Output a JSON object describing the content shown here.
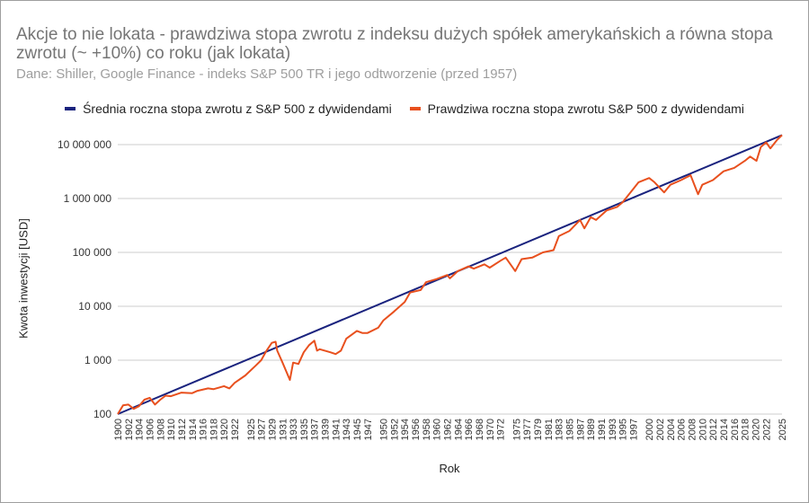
{
  "chart_data": {
    "type": "line",
    "title": "Akcje to nie lokata - prawdziwa stopa zwrotu z indeksu dużych spółek amerykańskich a równa stopa zwrotu (~ +10%) co roku (jak lokata)",
    "subtitle": "Dane: Shiller, Google Finance - indeks S&P 500 TR i jego odtworzenie (przed 1957)",
    "xlabel": "Rok",
    "ylabel": "Kwota inwestycji [USD]",
    "yscale": "log",
    "ylim": [
      100,
      15000000
    ],
    "yticks": [
      "100",
      "1 000",
      "10 000",
      "100 000",
      "1 000 000",
      "10 000 000"
    ],
    "ytick_values": [
      100,
      1000,
      10000,
      100000,
      1000000,
      10000000
    ],
    "xticks": [
      "1900",
      "1902",
      "1904",
      "1906",
      "1908",
      "1910",
      "1912",
      "1914",
      "1916",
      "1918",
      "1920",
      "1922",
      "1925",
      "1927",
      "1929",
      "1931",
      "1933",
      "1935",
      "1937",
      "1939",
      "1941",
      "1943",
      "1945",
      "1947",
      "1950",
      "1952",
      "1954",
      "1956",
      "1958",
      "1960",
      "1962",
      "1964",
      "1966",
      "1968",
      "1970",
      "1972",
      "1975",
      "1977",
      "1979",
      "1981",
      "1983",
      "1985",
      "1987",
      "1989",
      "1991",
      "1993",
      "1995",
      "1997",
      "2000",
      "2002",
      "2004",
      "2006",
      "2008",
      "2010",
      "2012",
      "2014",
      "2016",
      "2018",
      "2020",
      "2022",
      "2025"
    ],
    "grid": true,
    "legend_position": "top",
    "series": [
      {
        "name": "Średnia roczna stopa zwrotu z S&P 500 z dywidendami",
        "color": "#1a237e",
        "x": [
          1900,
          2025
        ],
        "values": [
          100,
          15000000
        ]
      },
      {
        "name": "Prawdziwa roczna stopa zwrotu S&P 500 z dywidendami",
        "color": "#e8501e",
        "x": [
          1900,
          1901,
          1902,
          1903,
          1904,
          1905,
          1906,
          1907,
          1908,
          1909,
          1910,
          1912,
          1914,
          1915,
          1917,
          1918,
          1920,
          1921,
          1922,
          1924,
          1926,
          1927,
          1928,
          1929,
          1929.7,
          1930,
          1931,
          1932.4,
          1933,
          1934,
          1935,
          1936,
          1937,
          1937.5,
          1938,
          1940,
          1941,
          1942,
          1943,
          1945,
          1946,
          1947,
          1949,
          1950,
          1952,
          1954,
          1955,
          1957,
          1958,
          1960,
          1962,
          1962.5,
          1964,
          1966,
          1967,
          1969,
          1970,
          1972,
          1973,
          1974.8,
          1976,
          1978,
          1980,
          1982,
          1983,
          1985,
          1987,
          1987.8,
          1989,
          1990,
          1992,
          1994,
          1995,
          1997,
          1998,
          2000,
          2001,
          2002.8,
          2004,
          2006,
          2007.8,
          2009.2,
          2010,
          2012,
          2014,
          2016,
          2018,
          2019,
          2020.2,
          2021,
          2022,
          2022.8,
          2024,
          2025
        ],
        "values": [
          100,
          145,
          150,
          125,
          140,
          185,
          200,
          150,
          185,
          220,
          215,
          250,
          245,
          270,
          300,
          290,
          330,
          300,
          380,
          520,
          800,
          1000,
          1500,
          2100,
          2200,
          1500,
          900,
          430,
          900,
          850,
          1400,
          1900,
          2300,
          1500,
          1600,
          1400,
          1300,
          1500,
          2500,
          3500,
          3200,
          3200,
          4000,
          5500,
          8000,
          12000,
          18000,
          20000,
          28000,
          32000,
          38000,
          33000,
          45000,
          55000,
          50000,
          60000,
          52000,
          70000,
          80000,
          45000,
          75000,
          80000,
          100000,
          110000,
          200000,
          250000,
          400000,
          280000,
          450000,
          400000,
          600000,
          700000,
          850000,
          1500000,
          2000000,
          2400000,
          2000000,
          1300000,
          1800000,
          2200000,
          2700000,
          1200000,
          1800000,
          2200000,
          3200000,
          3700000,
          5000000,
          6000000,
          5000000,
          9000000,
          11000000,
          8500000,
          12000000,
          15000000
        ]
      }
    ]
  },
  "header": {
    "title": "Akcje to nie lokata - prawdziwa stopa zwrotu z indeksu dużych spółek amerykańskich a równa stopa zwrotu (~ +10%) co roku (jak lokata)",
    "subtitle": "Dane: Shiller, Google Finance - indeks S&P 500 TR i jego odtworzenie (przed 1957)"
  },
  "legend": {
    "items": [
      {
        "label": "Średnia roczna stopa zwrotu z S&P 500 z dywidendami",
        "color": "#1a237e"
      },
      {
        "label": "Prawdziwa roczna stopa zwrotu S&P 500 z dywidendami",
        "color": "#e8501e"
      }
    ]
  },
  "axes": {
    "ylabel": "Kwota inwestycji [USD]",
    "xlabel": "Rok"
  }
}
